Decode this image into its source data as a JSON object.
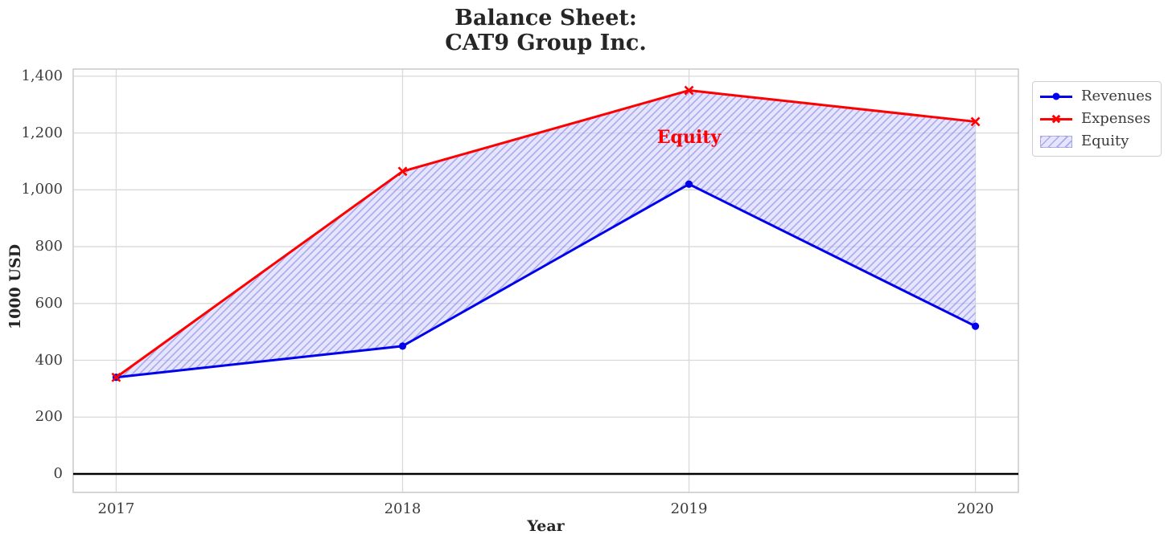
{
  "chart_data": {
    "type": "line",
    "title_lines": [
      "Balance Sheet:",
      "CAT9 Group Inc."
    ],
    "xlabel": "Year",
    "ylabel": "1000 USD",
    "x": [
      2017,
      2018,
      2019,
      2020
    ],
    "x_tick_labels": [
      "2017",
      "2018",
      "2019",
      "2020"
    ],
    "series": [
      {
        "name": "Revenues",
        "color": "#0000EE",
        "marker": "circle",
        "values": [
          340,
          450,
          1020,
          520
        ]
      },
      {
        "name": "Expenses",
        "color": "#FF0000",
        "marker": "x",
        "values": [
          340,
          1065,
          1350,
          1240
        ]
      }
    ],
    "fill_between": {
      "name": "Equity",
      "upper_series": "Expenses",
      "lower_series": "Revenues",
      "fill_color": "#CCCCFF",
      "hatch_color": "#7878DC",
      "hatch": "///"
    },
    "annotation": {
      "text": "Equity",
      "x": 2019,
      "y": 1185,
      "color": "#FF0000"
    },
    "yticks": {
      "values": [
        0,
        200,
        400,
        600,
        800,
        1000,
        1200,
        1400
      ],
      "labels": [
        "0",
        "200",
        "400",
        "600",
        "800",
        "1,000",
        "1,200",
        "1,400"
      ]
    },
    "xlim": [
      2016.85,
      2020.15
    ],
    "ylim": [
      -65,
      1425
    ],
    "grid": true,
    "grid_color": "#D9D9D9",
    "frame_color": "#C9C9C9",
    "zero_line_color": "#000000",
    "tick_color": "#3C3C3C",
    "legend_position": "upper right, outside axes"
  }
}
